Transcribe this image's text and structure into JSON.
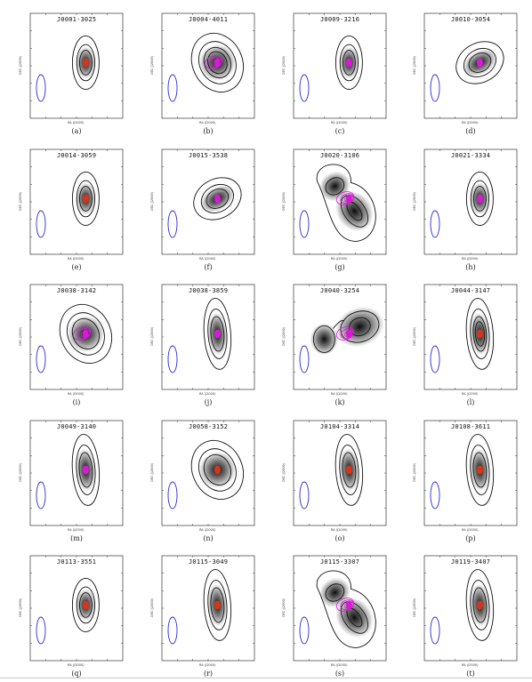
{
  "figure": {
    "axis_labels": {
      "x": "RA (J2000)",
      "y": "DEC (J2000)"
    },
    "colors": {
      "contour": "#111111",
      "overlay": "#d81ad8",
      "centroid": "#d8341a",
      "beam": "#2a2ad8",
      "grey": "#000000"
    },
    "panels": [
      {
        "id": "J0001-3025",
        "caption": "(a)",
        "core": "centroid",
        "rings": 3,
        "shape": "compact",
        "overlay": "none"
      },
      {
        "id": "J0004-4011",
        "caption": "(b)",
        "core": "magenta",
        "rings": 4,
        "shape": "extended",
        "overlay": "contours"
      },
      {
        "id": "J0009-3216",
        "caption": "(c)",
        "core": "magenta",
        "rings": 3,
        "shape": "compact",
        "overlay": "none"
      },
      {
        "id": "J0010-3054",
        "caption": "(d)",
        "core": "magenta",
        "rings": 3,
        "shape": "tilted",
        "overlay": "none"
      },
      {
        "id": "J0014-3059",
        "caption": "(e)",
        "core": "centroid",
        "rings": 3,
        "shape": "compact",
        "overlay": "none"
      },
      {
        "id": "J0015-3538",
        "caption": "(f)",
        "core": "magenta",
        "rings": 3,
        "shape": "tilted",
        "overlay": "none"
      },
      {
        "id": "J0020-3106",
        "caption": "(g)",
        "core": "magenta",
        "rings": 3,
        "shape": "double",
        "overlay": "contours"
      },
      {
        "id": "J0021-3334",
        "caption": "(h)",
        "core": "magenta",
        "rings": 3,
        "shape": "compact",
        "overlay": "none"
      },
      {
        "id": "J0038-3142",
        "caption": "(i)",
        "core": "magenta",
        "rings": 3,
        "shape": "extended",
        "overlay": "contours"
      },
      {
        "id": "J0038-3859",
        "caption": "(j)",
        "core": "magenta",
        "rings": 3,
        "shape": "elongated",
        "overlay": "none"
      },
      {
        "id": "J0040-3254",
        "caption": "(k)",
        "core": "magenta",
        "rings": 2,
        "shape": "triple",
        "overlay": "contours"
      },
      {
        "id": "J0044-3147",
        "caption": "(l)",
        "core": "centroid",
        "rings": 4,
        "shape": "elongated",
        "overlay": "none"
      },
      {
        "id": "J0049-3140",
        "caption": "(m)",
        "core": "magenta",
        "rings": 3,
        "shape": "elongated",
        "overlay": "none"
      },
      {
        "id": "J0058-3152",
        "caption": "(n)",
        "core": "centroid",
        "rings": 3,
        "shape": "extended",
        "overlay": "none"
      },
      {
        "id": "J0104-3314",
        "caption": "(o)",
        "core": "centroid",
        "rings": 3,
        "shape": "elongated",
        "overlay": "none"
      },
      {
        "id": "J0108-3611",
        "caption": "(p)",
        "core": "centroid",
        "rings": 3,
        "shape": "elongated",
        "overlay": "none"
      },
      {
        "id": "J0113-3551",
        "caption": "(q)",
        "core": "centroid",
        "rings": 3,
        "shape": "compact",
        "overlay": "none"
      },
      {
        "id": "J0115-3049",
        "caption": "(r)",
        "core": "centroid",
        "rings": 3,
        "shape": "elongated",
        "overlay": "none"
      },
      {
        "id": "J0115-3307",
        "caption": "(s)",
        "core": "magenta",
        "rings": 3,
        "shape": "double",
        "overlay": "contours"
      },
      {
        "id": "J0119-3407",
        "caption": "(t)",
        "core": "centroid",
        "rings": 3,
        "shape": "elongated",
        "overlay": "none"
      }
    ]
  }
}
